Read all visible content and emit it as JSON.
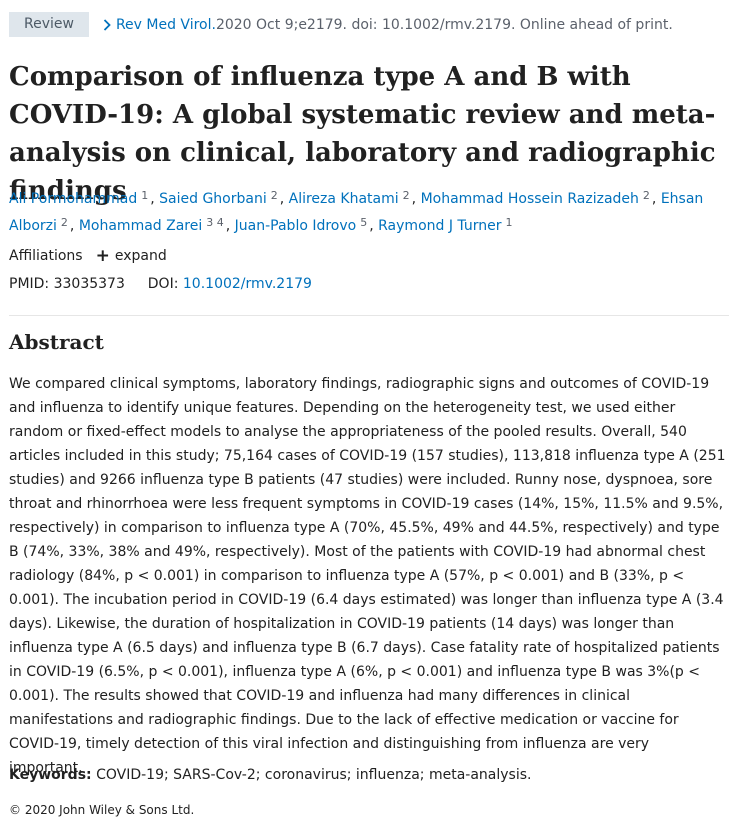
{
  "article_type": "Review",
  "journal": "Rev Med Virol.",
  "citation": " 2020 Oct 9;e2179. doi: 10.1002/rmv.2179. Online ahead of print.",
  "title": "Comparison of influenza type A and B with COVID-19: A global systematic review and meta-analysis on clinical, laboratory and radiographic findings",
  "authors": [
    {
      "name": "Ali Pormohammad",
      "aff": "1"
    },
    {
      "name": "Saied Ghorbani",
      "aff": "2"
    },
    {
      "name": "Alireza Khatami",
      "aff": "2"
    },
    {
      "name": "Mohammad Hossein Razizadeh",
      "aff": "2"
    },
    {
      "name": "Ehsan Alborzi",
      "aff": "2"
    },
    {
      "name": "Mohammad Zarei",
      "aff": "3  4"
    },
    {
      "name": "Juan-Pablo Idrovo",
      "aff": "5"
    },
    {
      "name": "Raymond J Turner",
      "aff": "1"
    }
  ],
  "affiliations": {
    "label": "Affiliations",
    "expand_label": "expand"
  },
  "ids": {
    "pmid_label": "PMID:",
    "pmid": "33035373",
    "doi_label": "DOI:",
    "doi": "10.1002/rmv.2179"
  },
  "abstract": {
    "heading": "Abstract",
    "text": "We compared clinical symptoms, laboratory findings, radiographic signs and outcomes of COVID-19 and influenza to identify unique features. Depending on the heterogeneity test, we used either random or fixed-effect models to analyse the appropriateness of the pooled results. Overall, 540 articles included in this study; 75,164 cases of COVID-19 (157 studies), 113,818 influenza type A (251 studies) and 9266 influenza type B patients (47 studies) were included. Runny nose, dyspnoea, sore throat and rhinorrhoea were less frequent symptoms in COVID-19 cases (14%, 15%, 11.5% and 9.5%, respectively) in comparison to influenza type A (70%, 45.5%, 49% and 44.5%, respectively) and type B (74%, 33%, 38% and 49%, respectively). Most of the patients with COVID-19 had abnormal chest radiology (84%, p < 0.001) in comparison to influenza type A (57%, p < 0.001) and B (33%, p < 0.001). The incubation period in COVID-19 (6.4 days estimated) was longer than influenza type A (3.4 days). Likewise, the duration of hospitalization in COVID-19 patients (14 days) was longer than influenza type A (6.5 days) and influenza type B (6.7 days). Case fatality rate of hospitalized patients in COVID-19 (6.5%, p < 0.001), influenza type A (6%, p < 0.001) and influenza type B was 3%(p < 0.001). The results showed that COVID-19 and influenza had many differences in clinical manifestations and radiographic findings. Due to the lack of effective medication or vaccine for COVID-19, timely detection of this viral infection and distinguishing from influenza are very important."
  },
  "keywords": {
    "label": "Keywords:",
    "text": " COVID-19; SARS-Cov-2; coronavirus; influenza; meta-analysis."
  },
  "copyright": "© 2020 John Wiley & Sons Ltd.",
  "colors": {
    "link": "#0071bc",
    "badge_bg": "#dfe6ec",
    "text": "#212121"
  }
}
